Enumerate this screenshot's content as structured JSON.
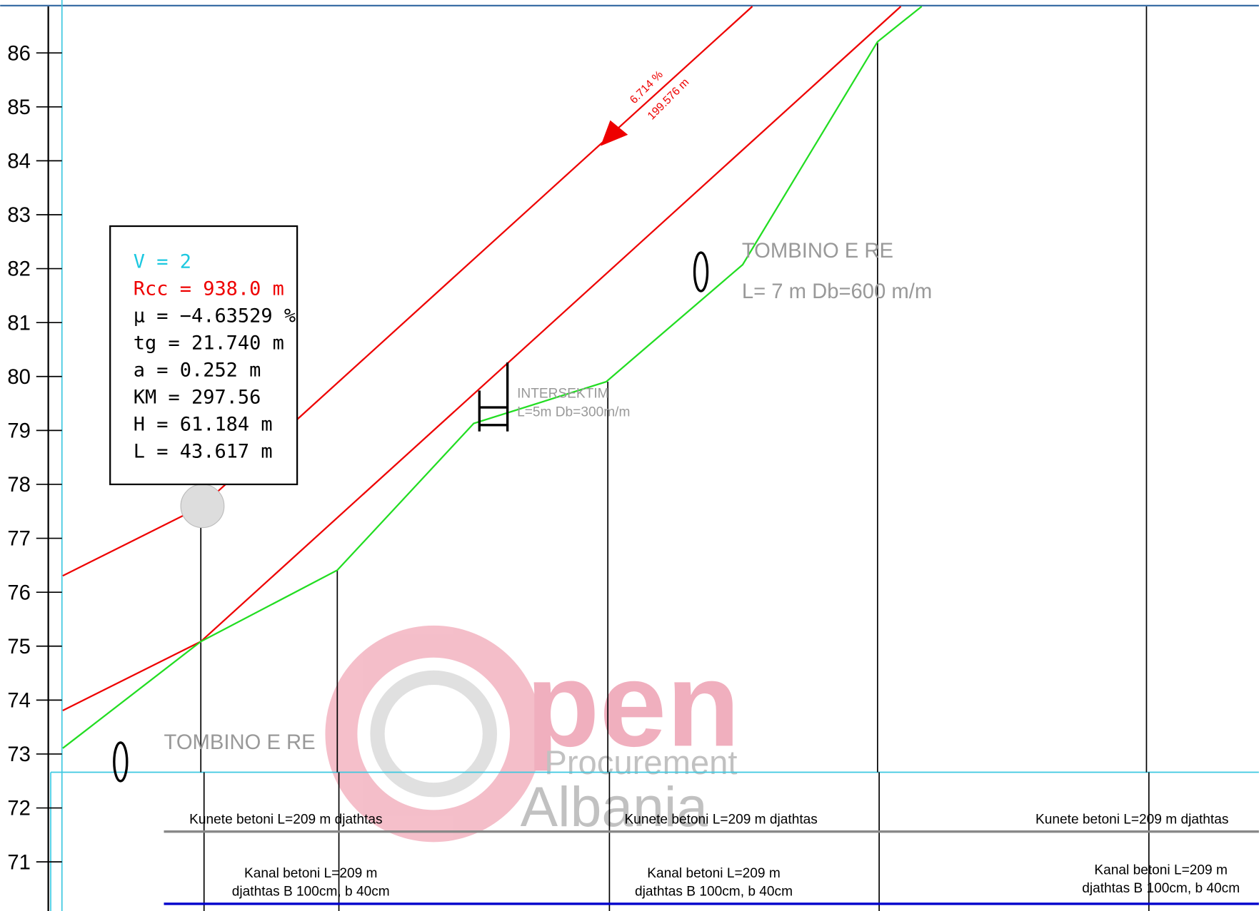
{
  "axis": {
    "ticks": [
      "86",
      "85",
      "84",
      "83",
      "82",
      "81",
      "80",
      "79",
      "78",
      "77",
      "76",
      "75",
      "74",
      "73",
      "72",
      "71"
    ]
  },
  "profile_box": {
    "lines": [
      "V = 2",
      "Rcc = 938.0 m",
      "μ = −4.63529 %",
      "tg = 21.740 m",
      "a = 0.252 m",
      "KM = 297.56",
      "H = 61.184 m",
      "L = 43.617 m"
    ]
  },
  "grade": {
    "slope": "6.714 %",
    "length": "199.576 m"
  },
  "tombino_1": {
    "title": "TOMBINO E RE",
    "detail": "L= 7 m  Db=600 m/m"
  },
  "intersektim": {
    "title": "INTERSEKTIM",
    "detail": "L=5m Db=300m/m"
  },
  "tombino_2": {
    "title": "TOMBINO E RE"
  },
  "kunete": [
    "Kunete betoni L=209 m djathtas",
    "Kunete betoni L=209 m djathtas",
    "Kunete betoni L=209 m djathtas"
  ],
  "kanal": [
    [
      "Kanal betoni L=209 m",
      "djathtas B 100cm, b 40cm"
    ],
    [
      "Kanal betoni L=209 m",
      "djathtas B 100cm, b 40cm"
    ],
    [
      "Kanal betoni L=209 m",
      "djathtas B 100cm, b 40cm"
    ]
  ],
  "watermark": {
    "big": "pen",
    "line1": "Procurement",
    "line2": "Albania"
  }
}
